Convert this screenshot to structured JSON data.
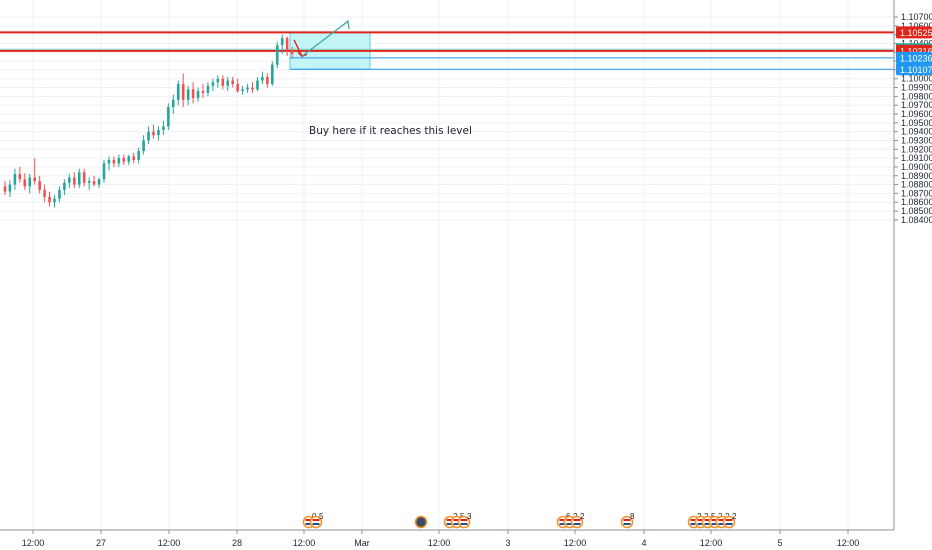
{
  "chart_data": {
    "type": "candlestick",
    "pair_quote_axis": "right",
    "x_ticks": [
      "12:00",
      "27",
      "12:00",
      "28",
      "12:00",
      "Mar",
      "12:00",
      "3",
      "12:00",
      "4",
      "12:00",
      "5",
      "12:00"
    ],
    "y_ticks": [
      "1.10700",
      "1.10600",
      "1.10500",
      "1.10400",
      "1.10300",
      "1.10200",
      "1.10100",
      "1.10000",
      "1.09900",
      "1.09800",
      "1.09700",
      "1.09600",
      "1.09500",
      "1.09400",
      "1.09300",
      "1.09200",
      "1.09100",
      "1.09000",
      "1.08900",
      "1.08800",
      "1.08700",
      "1.08600",
      "1.08500",
      "1.08400"
    ],
    "y_tick_values": [
      1.107,
      1.106,
      1.105,
      1.104,
      1.103,
      1.102,
      1.101,
      1.1,
      1.099,
      1.098,
      1.097,
      1.096,
      1.095,
      1.094,
      1.093,
      1.092,
      1.091,
      1.09,
      1.089,
      1.088,
      1.087,
      1.086,
      1.085,
      1.084
    ],
    "ylim": [
      1.0834,
      1.1078
    ],
    "price_tags": [
      {
        "label": "1.10525",
        "value": 1.10525,
        "color": "#e2231a"
      },
      {
        "label": "1.10335",
        "value": 1.10335,
        "color": "#26a69a"
      },
      {
        "label": "21:46",
        "value": 1.10275,
        "color": "#26a69a"
      },
      {
        "label": "1.10316",
        "value": 1.10316,
        "color": "#e2231a"
      },
      {
        "label": "1.10236",
        "value": 1.10236,
        "color": "#2196f3"
      },
      {
        "label": "1.10107",
        "value": 1.10107,
        "color": "#2196f3"
      }
    ],
    "horizontal_lines": [
      {
        "value": 1.10525,
        "color": "#e2231a"
      },
      {
        "value": 1.10316,
        "color": "#e2231a"
      },
      {
        "value": 1.10335,
        "color": "#7fd3cc"
      },
      {
        "value": 1.10236,
        "color": "#2196f3"
      },
      {
        "value": 1.10107,
        "color": "#2196f3"
      }
    ],
    "annotation": "Buy here if it reaches this level",
    "candles": [
      {
        "o": 1.0878,
        "h": 1.0884,
        "l": 1.0868,
        "c": 1.0872
      },
      {
        "o": 1.0872,
        "h": 1.0885,
        "l": 1.0866,
        "c": 1.088
      },
      {
        "o": 1.088,
        "h": 1.0898,
        "l": 1.0874,
        "c": 1.0892
      },
      {
        "o": 1.0892,
        "h": 1.09,
        "l": 1.0882,
        "c": 1.0886
      },
      {
        "o": 1.0886,
        "h": 1.0893,
        "l": 1.0874,
        "c": 1.0878
      },
      {
        "o": 1.0878,
        "h": 1.0892,
        "l": 1.087,
        "c": 1.0888
      },
      {
        "o": 1.0888,
        "h": 1.091,
        "l": 1.088,
        "c": 1.0884
      },
      {
        "o": 1.0884,
        "h": 1.089,
        "l": 1.087,
        "c": 1.0874
      },
      {
        "o": 1.0874,
        "h": 1.088,
        "l": 1.086,
        "c": 1.0866
      },
      {
        "o": 1.0866,
        "h": 1.0872,
        "l": 1.0855,
        "c": 1.086
      },
      {
        "o": 1.086,
        "h": 1.0868,
        "l": 1.0854,
        "c": 1.0864
      },
      {
        "o": 1.0864,
        "h": 1.0878,
        "l": 1.086,
        "c": 1.0874
      },
      {
        "o": 1.0874,
        "h": 1.0886,
        "l": 1.0868,
        "c": 1.0882
      },
      {
        "o": 1.0882,
        "h": 1.0892,
        "l": 1.0876,
        "c": 1.0888
      },
      {
        "o": 1.0888,
        "h": 1.0894,
        "l": 1.0876,
        "c": 1.088
      },
      {
        "o": 1.088,
        "h": 1.0898,
        "l": 1.0876,
        "c": 1.0894
      },
      {
        "o": 1.0894,
        "h": 1.0898,
        "l": 1.0878,
        "c": 1.0882
      },
      {
        "o": 1.0882,
        "h": 1.0888,
        "l": 1.0874,
        "c": 1.0884
      },
      {
        "o": 1.0884,
        "h": 1.089,
        "l": 1.0878,
        "c": 1.088
      },
      {
        "o": 1.088,
        "h": 1.0888,
        "l": 1.0876,
        "c": 1.0886
      },
      {
        "o": 1.0886,
        "h": 1.0908,
        "l": 1.0882,
        "c": 1.0904
      },
      {
        "o": 1.0904,
        "h": 1.0912,
        "l": 1.0896,
        "c": 1.0908
      },
      {
        "o": 1.0908,
        "h": 1.0912,
        "l": 1.09,
        "c": 1.0904
      },
      {
        "o": 1.0904,
        "h": 1.0914,
        "l": 1.09,
        "c": 1.091
      },
      {
        "o": 1.091,
        "h": 1.0914,
        "l": 1.0902,
        "c": 1.0906
      },
      {
        "o": 1.0906,
        "h": 1.0914,
        "l": 1.0902,
        "c": 1.0912
      },
      {
        "o": 1.0912,
        "h": 1.0916,
        "l": 1.0904,
        "c": 1.0908
      },
      {
        "o": 1.0908,
        "h": 1.0922,
        "l": 1.0904,
        "c": 1.0918
      },
      {
        "o": 1.0918,
        "h": 1.0936,
        "l": 1.0914,
        "c": 1.093
      },
      {
        "o": 1.093,
        "h": 1.0946,
        "l": 1.0926,
        "c": 1.094
      },
      {
        "o": 1.094,
        "h": 1.0948,
        "l": 1.0932,
        "c": 1.0936
      },
      {
        "o": 1.0936,
        "h": 1.0946,
        "l": 1.093,
        "c": 1.0942
      },
      {
        "o": 1.0942,
        "h": 1.0952,
        "l": 1.0936,
        "c": 1.0946
      },
      {
        "o": 1.0946,
        "h": 1.0972,
        "l": 1.0942,
        "c": 1.0968
      },
      {
        "o": 1.0968,
        "h": 1.0982,
        "l": 1.096,
        "c": 1.0976
      },
      {
        "o": 1.0976,
        "h": 1.0998,
        "l": 1.097,
        "c": 1.0994
      },
      {
        "o": 1.0994,
        "h": 1.1006,
        "l": 1.0968,
        "c": 1.0976
      },
      {
        "o": 1.0976,
        "h": 1.0992,
        "l": 1.097,
        "c": 1.0988
      },
      {
        "o": 1.0988,
        "h": 1.0996,
        "l": 1.0972,
        "c": 1.0978
      },
      {
        "o": 1.0978,
        "h": 1.099,
        "l": 1.0974,
        "c": 1.0986
      },
      {
        "o": 1.0986,
        "h": 1.0994,
        "l": 1.0978,
        "c": 1.0984
      },
      {
        "o": 1.0984,
        "h": 1.0996,
        "l": 1.098,
        "c": 1.0992
      },
      {
        "o": 1.0992,
        "h": 1.1,
        "l": 1.0986,
        "c": 1.0996
      },
      {
        "o": 1.0996,
        "h": 1.1004,
        "l": 1.099,
        "c": 1.1
      },
      {
        "o": 1.1,
        "h": 1.1004,
        "l": 1.0988,
        "c": 1.0992
      },
      {
        "o": 1.0992,
        "h": 1.1002,
        "l": 1.0986,
        "c": 1.0998
      },
      {
        "o": 1.0998,
        "h": 1.1002,
        "l": 1.099,
        "c": 1.0994
      },
      {
        "o": 1.0994,
        "h": 1.1,
        "l": 1.0984,
        "c": 1.0986
      },
      {
        "o": 1.0986,
        "h": 1.0992,
        "l": 1.0982,
        "c": 1.0988
      },
      {
        "o": 1.0988,
        "h": 1.0994,
        "l": 1.0984,
        "c": 1.099
      },
      {
        "o": 1.099,
        "h": 1.0996,
        "l": 1.0984,
        "c": 1.0988
      },
      {
        "o": 1.0988,
        "h": 1.1002,
        "l": 1.0986,
        "c": 1.0998
      },
      {
        "o": 1.0998,
        "h": 1.1008,
        "l": 1.0994,
        "c": 1.1002
      },
      {
        "o": 1.1002,
        "h": 1.1006,
        "l": 1.099,
        "c": 1.0994
      },
      {
        "o": 1.0994,
        "h": 1.102,
        "l": 1.0992,
        "c": 1.1016
      },
      {
        "o": 1.1016,
        "h": 1.1042,
        "l": 1.1012,
        "c": 1.1038
      },
      {
        "o": 1.1038,
        "h": 1.105,
        "l": 1.1028,
        "c": 1.1046
      },
      {
        "o": 1.1046,
        "h": 1.1048,
        "l": 1.1026,
        "c": 1.1032
      },
      {
        "o": 1.1032,
        "h": 1.1036,
        "l": 1.1024,
        "c": 1.1028
      }
    ],
    "events": [
      {
        "group": "day28",
        "labels": [
          "0",
          "5"
        ]
      },
      {
        "group": "mar1",
        "labels": []
      },
      {
        "group": "mar2",
        "labels": [
          "2",
          "5",
          "3"
        ]
      },
      {
        "group": "mar3",
        "labels": [
          "6",
          "2",
          "2"
        ]
      },
      {
        "group": "mar4",
        "labels": [
          "8"
        ]
      },
      {
        "group": "mar5",
        "labels": [
          "2",
          "2",
          "5",
          "2",
          "2",
          "2"
        ]
      }
    ]
  }
}
